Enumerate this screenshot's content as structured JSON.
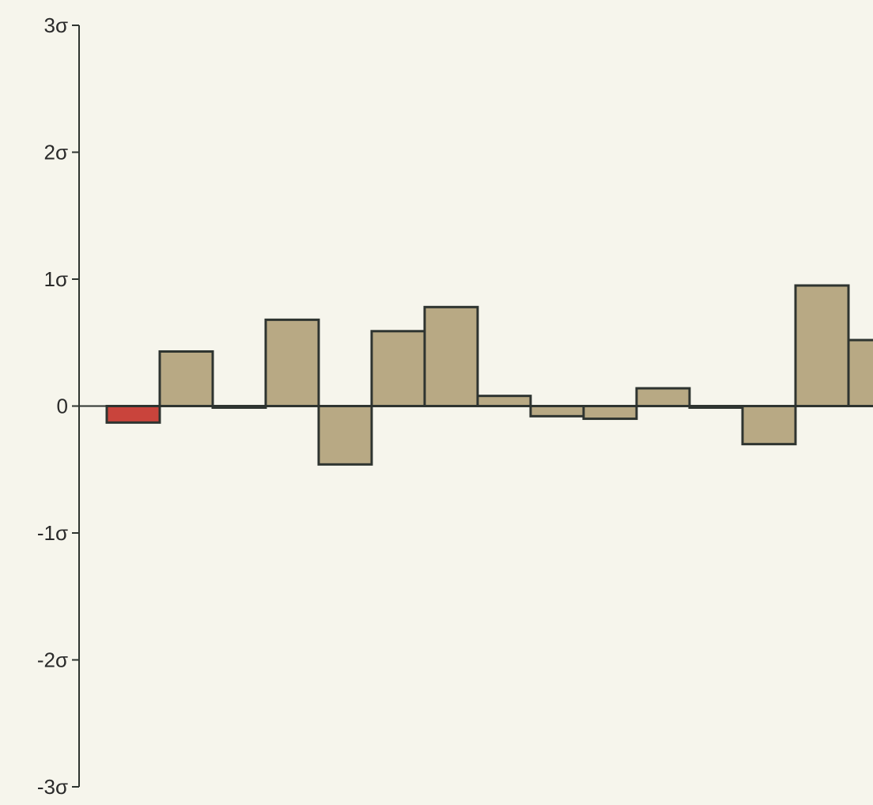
{
  "chart_data": {
    "type": "bar",
    "title": "",
    "xlabel": "",
    "ylabel": "",
    "ylim": [
      -3,
      3
    ],
    "grid": false,
    "legend": "none",
    "y_ticks": [
      {
        "value": 3,
        "label": "3σ"
      },
      {
        "value": 2,
        "label": "2σ"
      },
      {
        "value": 1,
        "label": "1σ"
      },
      {
        "value": 0,
        "label": "0"
      },
      {
        "value": -1,
        "label": "-1σ"
      },
      {
        "value": -2,
        "label": "-2σ"
      },
      {
        "value": -3,
        "label": "-3σ"
      }
    ],
    "values": [
      -0.13,
      0.43,
      0.0,
      0.68,
      -0.46,
      0.59,
      0.78,
      0.08,
      -0.08,
      -0.1,
      0.14,
      0.0,
      -0.3,
      0.95,
      0.52
    ],
    "highlight_index": 0,
    "colors": {
      "bar_fill": "#b8a984",
      "bar_stroke": "#2e3430",
      "highlight_fill": "#c9443c",
      "axis": "#2e3430",
      "background": "#f6f5ec"
    }
  }
}
